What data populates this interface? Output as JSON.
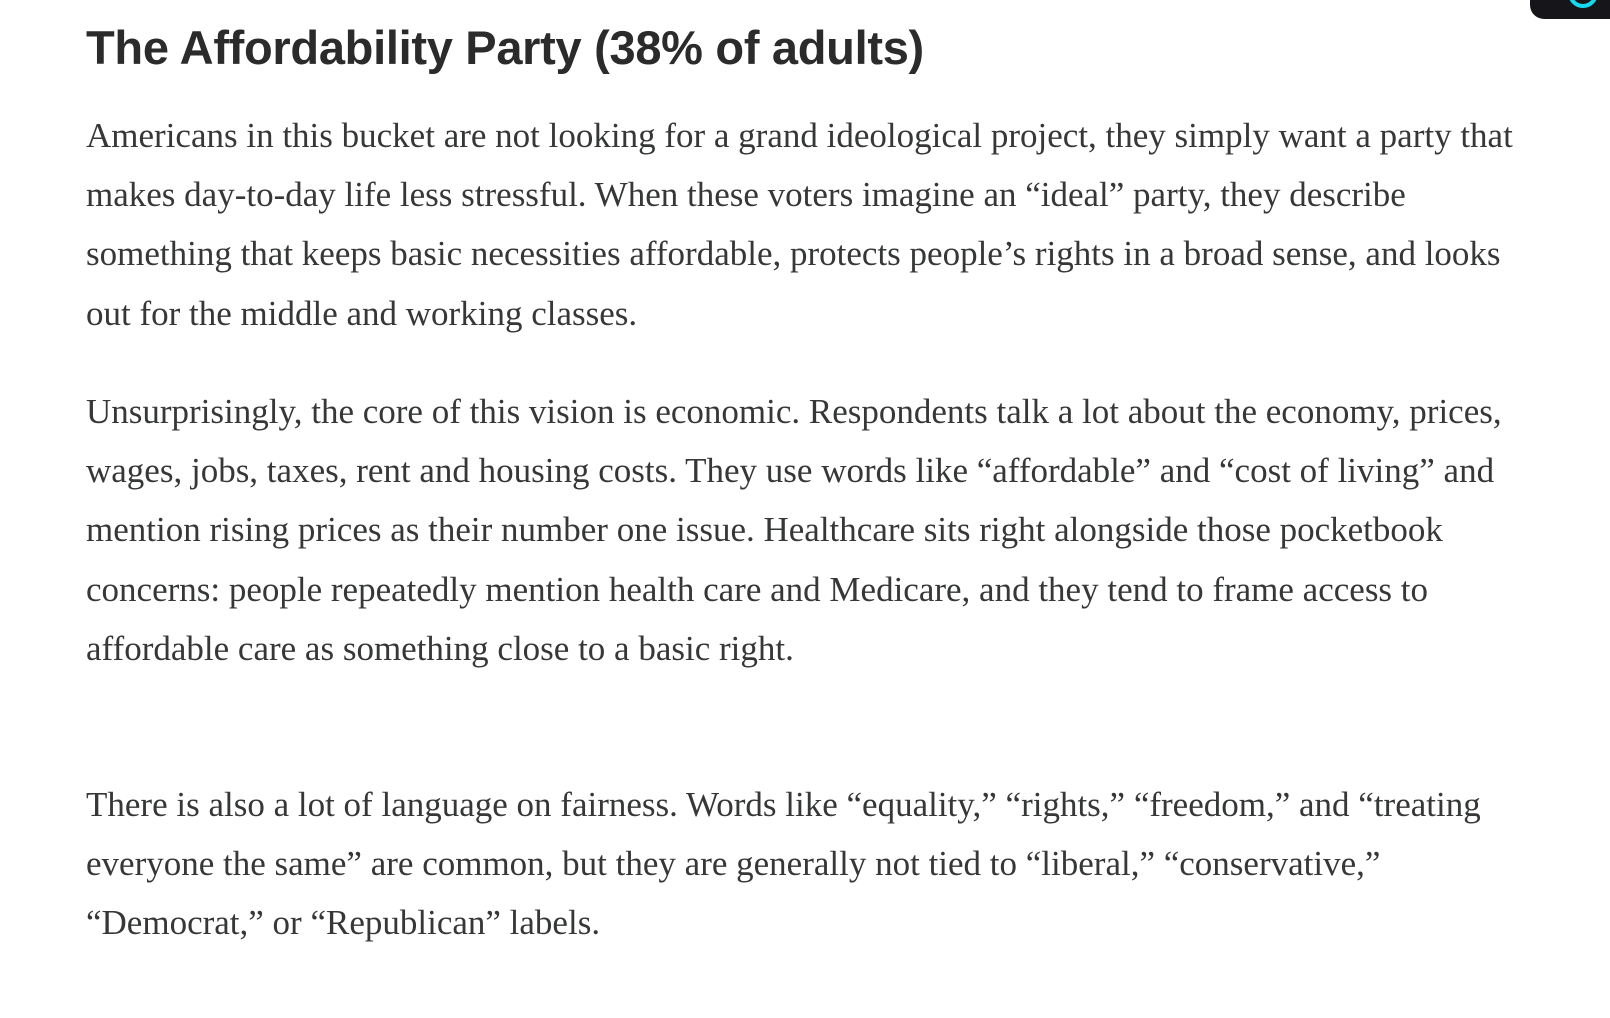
{
  "article": {
    "heading": "The Affordability Party (38% of adults)",
    "paragraphs": [
      "Americans in this bucket are not looking for a grand ideological project, they simply want a party that makes day-to-day life less stressful. When these voters imagine an “ideal” party, they describe something that keeps basic necessities affordable, protects people’s rights in a broad sense, and looks out for the middle and working classes.",
      "Unsurprisingly, the core of this vision is economic. Respondents talk a lot about the economy, prices, wages, jobs, taxes, rent and housing costs. They use words like “affordable” and “cost of living” and mention rising prices as their number one issue. Healthcare sits right alongside those pocketbook concerns: people repeatedly mention health care and Medicare, and they tend to frame access to affordable care as something close to a basic right.",
      "There is also a lot of language on fairness. Words like “equality,” “rights,” “freedom,” and “treating everyone the same” are common, but they are generally not tied to “liberal,” “conservative,” “Democrat,” or “Republican” labels."
    ]
  },
  "overlay": {
    "icon": "ring-icon",
    "accent": "#16d9f0"
  }
}
